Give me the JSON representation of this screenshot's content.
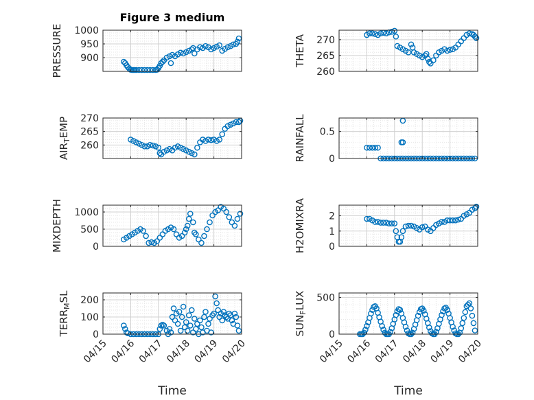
{
  "figure_title": "Figure 3 medium",
  "xlabel": "Time",
  "x_ticks": [
    "04/15",
    "04/16",
    "04/17",
    "04/18",
    "04/19",
    "04/20"
  ],
  "colors": {
    "marker": "#0072BD",
    "axis": "#262626",
    "grid": "#dcdcdc"
  },
  "chart_data": [
    {
      "type": "scatter",
      "ylabel": "PRESSURE",
      "ylim": [
        850,
        1000
      ],
      "yticks": [
        900,
        950,
        1000
      ],
      "grid": true,
      "x_ticks_shown": false,
      "x": [
        0.75,
        0.8,
        0.85,
        0.9,
        0.95,
        1.0,
        1.05,
        1.1,
        1.15,
        1.2,
        1.3,
        1.4,
        1.5,
        1.6,
        1.7,
        1.8,
        1.9,
        1.95,
        2.0,
        2.05,
        2.1,
        2.15,
        2.2,
        2.3,
        2.4,
        2.45,
        2.5,
        2.6,
        2.7,
        2.8,
        2.9,
        3.0,
        3.1,
        3.2,
        3.25,
        3.3,
        3.4,
        3.5,
        3.6,
        3.7,
        3.8,
        3.9,
        4.0,
        4.1,
        4.2,
        4.3,
        4.4,
        4.5,
        4.6,
        4.7,
        4.8,
        4.85,
        4.9
      ],
      "y": [
        885,
        880,
        872,
        865,
        860,
        856,
        855,
        855,
        855,
        855,
        855,
        855,
        855,
        855,
        855,
        855,
        855,
        856,
        862,
        870,
        880,
        885,
        890,
        900,
        905,
        880,
        910,
        905,
        912,
        918,
        915,
        920,
        925,
        930,
        935,
        915,
        930,
        938,
        935,
        942,
        938,
        930,
        935,
        940,
        945,
        925,
        932,
        938,
        942,
        948,
        950,
        958,
        970
      ]
    },
    {
      "type": "scatter",
      "ylabel": "THETA",
      "ylim": [
        260,
        273
      ],
      "yticks": [
        260,
        265,
        270
      ],
      "grid": true,
      "x_ticks_shown": false,
      "x": [
        1.0,
        1.1,
        1.2,
        1.3,
        1.4,
        1.5,
        1.6,
        1.7,
        1.8,
        1.9,
        2.0,
        2.05,
        2.1,
        2.2,
        2.3,
        2.4,
        2.5,
        2.6,
        2.65,
        2.7,
        2.8,
        2.9,
        3.0,
        3.1,
        3.15,
        3.2,
        3.25,
        3.3,
        3.4,
        3.5,
        3.6,
        3.7,
        3.8,
        3.9,
        4.0,
        4.1,
        4.2,
        4.3,
        4.4,
        4.5,
        4.6,
        4.7,
        4.8,
        4.85,
        4.9,
        4.95
      ],
      "y": [
        271.5,
        272,
        272,
        271.8,
        271.5,
        272,
        272.2,
        272,
        272.3,
        272.5,
        272.8,
        271,
        268,
        267.5,
        267,
        266.5,
        266,
        268.5,
        267.5,
        266,
        265.5,
        265,
        264.5,
        265,
        265.5,
        264,
        263,
        262.5,
        263.5,
        265,
        266,
        266.5,
        267,
        266.5,
        266.8,
        267,
        267.5,
        268.5,
        269.5,
        270.5,
        271.5,
        272,
        271.8,
        271.5,
        271,
        270.5
      ]
    },
    {
      "type": "scatter",
      "ylabel": "AIR_TEMP",
      "ylim": [
        255,
        270
      ],
      "yticks": [
        260,
        265,
        270
      ],
      "grid": true,
      "x_ticks_shown": false,
      "x": [
        1.0,
        1.1,
        1.2,
        1.3,
        1.4,
        1.5,
        1.6,
        1.7,
        1.8,
        1.9,
        2.0,
        2.05,
        2.1,
        2.2,
        2.3,
        2.4,
        2.5,
        2.6,
        2.7,
        2.8,
        2.9,
        3.0,
        3.1,
        3.2,
        3.3,
        3.4,
        3.5,
        3.6,
        3.7,
        3.8,
        3.9,
        4.0,
        4.1,
        4.2,
        4.3,
        4.4,
        4.5,
        4.6,
        4.7,
        4.8,
        4.9,
        4.95
      ],
      "y": [
        262,
        261.5,
        261,
        260.5,
        260,
        259.5,
        259.5,
        260,
        259.8,
        259.5,
        259,
        257,
        256.5,
        257.5,
        258,
        258.5,
        258,
        259,
        259.5,
        259,
        258.5,
        258,
        257.5,
        257,
        256.5,
        259,
        261,
        262,
        261.5,
        262,
        261.8,
        262,
        261.5,
        262,
        264,
        266,
        267,
        267.5,
        268,
        268.5,
        268.5,
        269
      ]
    },
    {
      "type": "scatter",
      "ylabel": "RAINFALL",
      "ylim": [
        0,
        0.75
      ],
      "yticks": [
        0,
        0.5
      ],
      "grid": true,
      "x_ticks_shown": false,
      "x": [
        1.0,
        1.1,
        1.2,
        1.3,
        1.4,
        1.5,
        1.6,
        1.7,
        1.8,
        1.9,
        2.0,
        2.1,
        2.2,
        2.3,
        2.4,
        2.5,
        2.6,
        2.7,
        2.8,
        2.9,
        3.0,
        3.1,
        3.2,
        3.3,
        3.4,
        3.5,
        3.6,
        3.7,
        3.8,
        3.9,
        4.0,
        4.1,
        4.2,
        4.3,
        4.4,
        4.5,
        4.6,
        4.7,
        4.8,
        4.9,
        2.25,
        2.3,
        2.3
      ],
      "y": [
        0.2,
        0.2,
        0.2,
        0.2,
        0.2,
        0,
        0,
        0,
        0,
        0,
        0,
        0,
        0,
        0,
        0,
        0,
        0,
        0,
        0,
        0,
        0,
        0,
        0,
        0,
        0,
        0,
        0,
        0,
        0,
        0,
        0,
        0,
        0,
        0,
        0,
        0,
        0,
        0,
        0,
        0,
        0.3,
        0.3,
        0.7
      ]
    },
    {
      "type": "scatter",
      "ylabel": "MIXDEPTH",
      "ylim": [
        0,
        1200
      ],
      "yticks": [
        0,
        500,
        1000
      ],
      "grid": true,
      "x_ticks_shown": false,
      "x": [
        0.75,
        0.85,
        0.95,
        1.05,
        1.15,
        1.25,
        1.35,
        1.45,
        1.55,
        1.65,
        1.75,
        1.85,
        1.95,
        2.05,
        2.15,
        2.25,
        2.35,
        2.45,
        2.55,
        2.65,
        2.75,
        2.85,
        2.95,
        3.0,
        3.05,
        3.1,
        3.15,
        3.25,
        3.3,
        3.35,
        3.45,
        3.55,
        3.65,
        3.75,
        3.85,
        3.95,
        4.05,
        4.15,
        4.25,
        4.35,
        4.45,
        4.55,
        4.65,
        4.75,
        4.85,
        4.95
      ],
      "y": [
        200,
        250,
        300,
        350,
        400,
        450,
        500,
        450,
        300,
        100,
        120,
        100,
        150,
        250,
        350,
        450,
        500,
        550,
        500,
        350,
        250,
        300,
        400,
        500,
        600,
        800,
        950,
        700,
        400,
        350,
        200,
        100,
        300,
        500,
        700,
        900,
        1000,
        1050,
        1150,
        1100,
        1000,
        850,
        700,
        600,
        800,
        950
      ]
    },
    {
      "type": "scatter",
      "ylabel": "H2OMIXRA",
      "ylim": [
        0,
        2.7
      ],
      "yticks": [
        0,
        1,
        2
      ],
      "grid": true,
      "x_ticks_shown": false,
      "x": [
        1.0,
        1.1,
        1.2,
        1.3,
        1.4,
        1.5,
        1.6,
        1.7,
        1.8,
        1.9,
        2.0,
        2.05,
        2.1,
        2.15,
        2.2,
        2.25,
        2.3,
        2.4,
        2.5,
        2.6,
        2.7,
        2.8,
        2.9,
        3.0,
        3.1,
        3.2,
        3.3,
        3.4,
        3.5,
        3.6,
        3.7,
        3.8,
        3.9,
        4.0,
        4.1,
        4.2,
        4.3,
        4.4,
        4.5,
        4.6,
        4.7,
        4.8,
        4.9,
        4.95
      ],
      "y": [
        1.8,
        1.8,
        1.7,
        1.6,
        1.6,
        1.55,
        1.55,
        1.55,
        1.5,
        1.5,
        1.5,
        1.0,
        0.6,
        0.3,
        0.3,
        0.6,
        1.0,
        1.3,
        1.35,
        1.35,
        1.3,
        1.2,
        1.1,
        1.25,
        1.3,
        1.1,
        1.0,
        1.2,
        1.4,
        1.5,
        1.6,
        1.6,
        1.7,
        1.7,
        1.7,
        1.7,
        1.75,
        1.8,
        2.0,
        2.1,
        2.2,
        2.4,
        2.5,
        2.6
      ]
    },
    {
      "type": "scatter",
      "ylabel": "TERR_MSL",
      "ylim": [
        0,
        240
      ],
      "yticks": [
        0,
        100,
        200
      ],
      "grid": true,
      "x_ticks_shown": true,
      "x": [
        0.75,
        0.8,
        0.85,
        0.9,
        1.0,
        1.1,
        1.2,
        1.3,
        1.4,
        1.5,
        1.6,
        1.7,
        1.8,
        1.9,
        2.0,
        2.05,
        2.1,
        2.15,
        2.2,
        2.3,
        2.35,
        2.4,
        2.45,
        2.5,
        2.55,
        2.6,
        2.65,
        2.7,
        2.75,
        2.8,
        2.85,
        2.9,
        2.95,
        3.0,
        3.05,
        3.1,
        3.15,
        3.2,
        3.25,
        3.3,
        3.35,
        3.4,
        3.45,
        3.5,
        3.55,
        3.6,
        3.65,
        3.7,
        3.75,
        3.8,
        3.85,
        3.9,
        3.95,
        4.0,
        4.05,
        4.1,
        4.15,
        4.2,
        4.25,
        4.3,
        4.35,
        4.4,
        4.45,
        4.5,
        4.55,
        4.6,
        4.65,
        4.7,
        4.75,
        4.8,
        4.85,
        4.9
      ],
      "y": [
        50,
        30,
        10,
        5,
        0,
        0,
        0,
        0,
        0,
        0,
        0,
        0,
        0,
        0,
        0,
        30,
        50,
        55,
        50,
        20,
        0,
        30,
        10,
        100,
        150,
        80,
        120,
        60,
        130,
        20,
        100,
        160,
        40,
        70,
        20,
        110,
        50,
        140,
        10,
        90,
        30,
        60,
        0,
        80,
        40,
        10,
        100,
        130,
        20,
        60,
        90,
        10,
        110,
        120,
        220,
        180,
        140,
        100,
        120,
        80,
        130,
        110,
        100,
        90,
        120,
        110,
        80,
        60,
        120,
        100,
        50,
        20
      ]
    },
    {
      "type": "scatter",
      "ylabel": "SUN_FLUX",
      "ylim": [
        0,
        560
      ],
      "yticks": [
        0,
        500
      ],
      "grid": true,
      "x_ticks_shown": true,
      "x": [
        0.75,
        0.8,
        0.85,
        0.9,
        0.95,
        1.0,
        1.05,
        1.1,
        1.15,
        1.2,
        1.25,
        1.3,
        1.35,
        1.4,
        1.45,
        1.5,
        1.55,
        1.6,
        1.65,
        1.7,
        1.75,
        1.8,
        1.85,
        1.9,
        1.95,
        2.0,
        2.05,
        2.1,
        2.15,
        2.2,
        2.25,
        2.3,
        2.35,
        2.4,
        2.45,
        2.5,
        2.55,
        2.6,
        2.65,
        2.7,
        2.75,
        2.8,
        2.85,
        2.9,
        2.95,
        3.0,
        3.05,
        3.1,
        3.15,
        3.2,
        3.25,
        3.3,
        3.35,
        3.4,
        3.45,
        3.5,
        3.55,
        3.6,
        3.65,
        3.7,
        3.75,
        3.8,
        3.85,
        3.9,
        3.95,
        4.0,
        4.05,
        4.1,
        4.15,
        4.2,
        4.25,
        4.3,
        4.35,
        4.4,
        4.45,
        4.5,
        4.55,
        4.6,
        4.65,
        4.7,
        4.75,
        4.8,
        4.85,
        4.9
      ],
      "y": [
        0,
        0,
        0,
        20,
        60,
        110,
        160,
        220,
        280,
        330,
        370,
        380,
        350,
        290,
        230,
        170,
        110,
        60,
        20,
        0,
        0,
        0,
        30,
        80,
        140,
        200,
        260,
        310,
        340,
        330,
        280,
        220,
        160,
        100,
        50,
        10,
        0,
        0,
        20,
        70,
        130,
        190,
        250,
        300,
        340,
        350,
        320,
        270,
        210,
        150,
        90,
        40,
        10,
        0,
        0,
        30,
        80,
        140,
        200,
        260,
        310,
        350,
        360,
        330,
        280,
        220,
        160,
        100,
        50,
        10,
        0,
        0,
        20,
        80,
        150,
        220,
        300,
        380,
        400,
        420,
        350,
        250,
        150,
        50
      ]
    }
  ]
}
